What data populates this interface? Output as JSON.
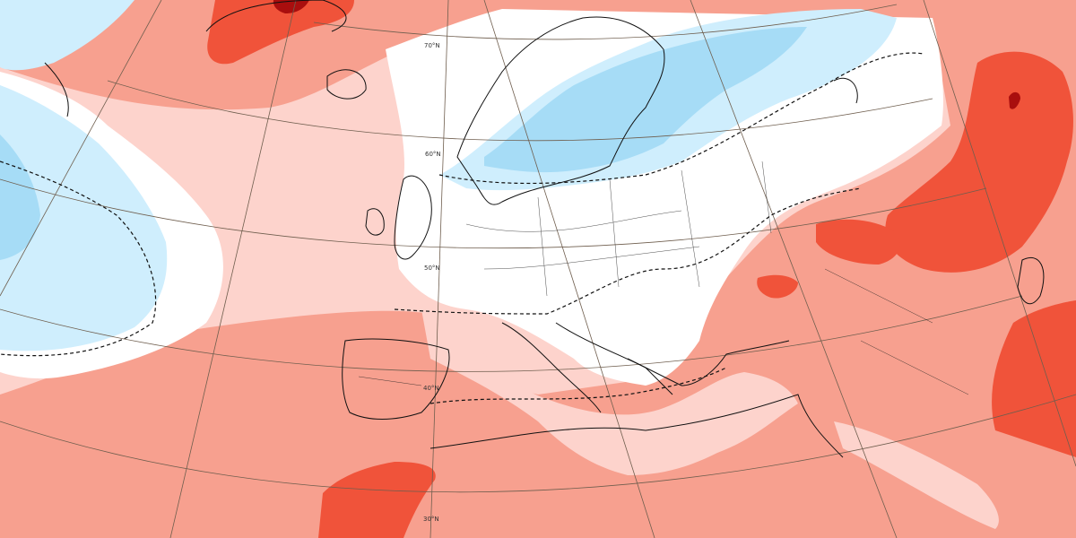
{
  "map": {
    "projection": "lambert-conformal",
    "region": "Europe / North Atlantic / Middle East",
    "field": "temperature anomaly",
    "colors": {
      "land_cold_light": "#cfeefd",
      "cold_mid": "#a6dcf6",
      "cold_strong": "#7cc6ee",
      "warm_light": "#fdd3cc",
      "warm_mid": "#f7a08f",
      "warm_strong": "#f0533a",
      "warm_extreme": "#a90e0e",
      "coast": "#111111",
      "grid": "#6f5e4e"
    },
    "lat_labels": [
      {
        "id": "lat70",
        "text": "70°N"
      },
      {
        "id": "lat60",
        "text": "60°N"
      },
      {
        "id": "lat50",
        "text": "50°N"
      },
      {
        "id": "lat40",
        "text": "40°N"
      },
      {
        "id": "lat30",
        "text": "30°N"
      }
    ]
  }
}
